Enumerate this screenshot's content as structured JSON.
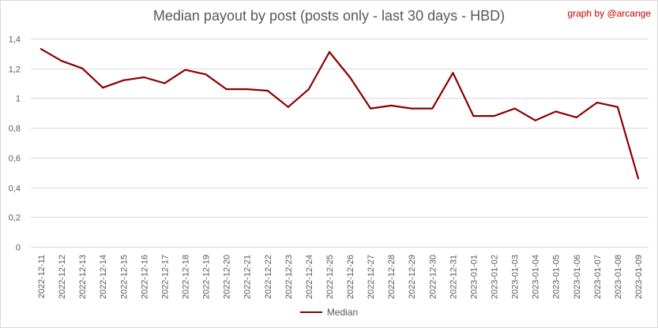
{
  "chart_data": {
    "type": "line",
    "title": "Median payout by post (posts only - last 30 days - HBD)",
    "credit": "graph by @arcange",
    "xlabel": "",
    "ylabel": "",
    "ylim": [
      0,
      1.4
    ],
    "yticks": [
      "0",
      "0,2",
      "0,4",
      "0,6",
      "0,8",
      "1",
      "1,2",
      "1,4"
    ],
    "ytick_values": [
      0,
      0.2,
      0.4,
      0.6,
      0.8,
      1,
      1.2,
      1.4
    ],
    "grid": true,
    "legend_position": "bottom",
    "categories": [
      "2022-12-11",
      "2022-12-12",
      "2022-12-13",
      "2022-12-14",
      "2022-12-15",
      "2022-12-16",
      "2022-12-17",
      "2022-12-18",
      "2022-12-19",
      "2022-12-20",
      "2022-12-21",
      "2022-12-22",
      "2022-12-23",
      "2022-12-24",
      "2022-12-25",
      "2022-12-26",
      "2022-12-27",
      "2022-12-28",
      "2022-12-29",
      "2022-12-30",
      "2022-12-31",
      "2023-01-01",
      "2023-01-02",
      "2023-01-03",
      "2023-01-04",
      "2023-01-05",
      "2023-01-06",
      "2023-01-07",
      "2023-01-08",
      "2023-01-09"
    ],
    "series": [
      {
        "name": "Median",
        "color": "#8b0000",
        "values": [
          1.33,
          1.25,
          1.2,
          1.07,
          1.12,
          1.14,
          1.1,
          1.19,
          1.16,
          1.06,
          1.06,
          1.05,
          0.94,
          1.06,
          1.31,
          1.14,
          0.93,
          0.95,
          0.93,
          0.93,
          1.17,
          0.88,
          0.88,
          0.93,
          0.85,
          0.91,
          0.87,
          0.97,
          0.94,
          0.46
        ]
      }
    ],
    "colors": {
      "line": "#8b0000",
      "grid": "#d9d9d9",
      "axis_text": "#595959",
      "title": "#595959",
      "credit": "#c00000"
    }
  }
}
